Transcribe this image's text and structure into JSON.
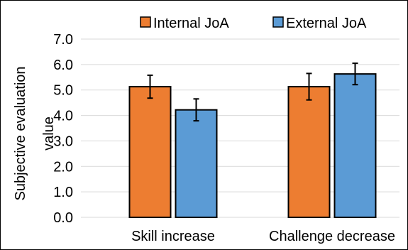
{
  "chart_data": {
    "type": "bar",
    "categories": [
      "Skill increase",
      "Challenge decrease"
    ],
    "series": [
      {
        "name": "Internal JoA",
        "color": "#ED7D31",
        "values": [
          5.13,
          5.13
        ],
        "error": [
          0.45,
          0.52
        ]
      },
      {
        "name": "External JoA",
        "color": "#5B9BD5",
        "values": [
          4.22,
          5.63
        ],
        "error": [
          0.43,
          0.42
        ]
      }
    ],
    "ylabel_line1": "Subjective evaluation",
    "ylabel_line2": "value",
    "ylim": [
      0,
      7
    ],
    "yticks": [
      "0.0",
      "1.0",
      "2.0",
      "3.0",
      "4.0",
      "5.0",
      "6.0",
      "7.0"
    ],
    "grid": true,
    "legend_position": "top"
  }
}
